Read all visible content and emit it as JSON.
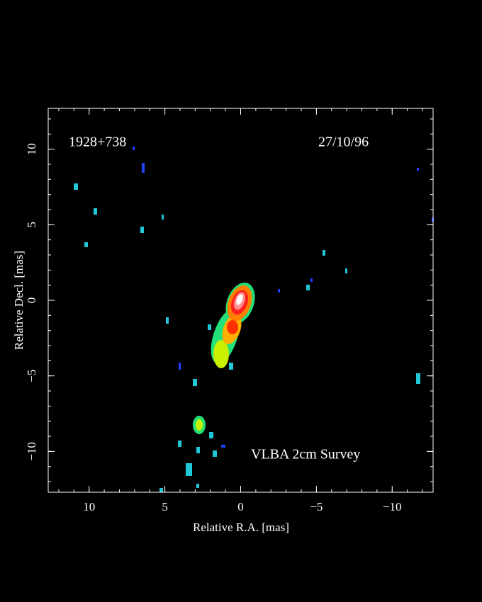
{
  "chart_data": {
    "type": "image",
    "xlabel": "Relative R.A. [mas]",
    "ylabel": "Relative Decl. [mas]",
    "annotations": [
      "1928+738",
      "27/10/96",
      "VLBA 2cm Survey"
    ],
    "xlim": [
      12.7,
      -12.7
    ],
    "ylim": [
      -12.7,
      12.7
    ],
    "xticks": [
      10,
      5,
      0,
      {
        "value": -5,
        "label": "−5"
      },
      {
        "value": -10,
        "label": "−10"
      }
    ],
    "yticks": [
      {
        "value": -10,
        "label": "−10"
      },
      {
        "value": -5,
        "label": "−5"
      },
      0,
      5,
      10
    ],
    "xminorticks": [
      12,
      11,
      10,
      9,
      8,
      7,
      6,
      5,
      4,
      3,
      2,
      1,
      0,
      -1,
      -2,
      -3,
      -4,
      -5,
      -6,
      -7,
      -8,
      -9,
      -10,
      -11,
      -12
    ],
    "yminorticks": [
      -12,
      -11,
      -10,
      -9,
      -8,
      -7,
      -6,
      -5,
      -4,
      -3,
      -2,
      -1,
      0,
      1,
      2,
      3,
      4,
      5,
      6,
      7,
      8,
      9,
      10,
      11,
      12
    ]
  }
}
